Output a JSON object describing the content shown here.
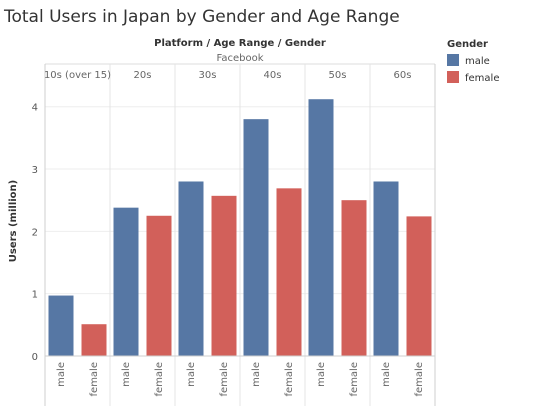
{
  "chart_data": {
    "type": "bar",
    "title": "Total Users in Japan by Gender and Age Range",
    "column_header": "Platform  /  Age Range  /  Gender",
    "platform": "Facebook",
    "ylabel": "Users (million)",
    "ylim": [
      0,
      4.3
    ],
    "yticks": [
      "0",
      "1",
      "2",
      "3",
      "4"
    ],
    "grid": true,
    "legend_position": "right",
    "legend": {
      "title": "Gender",
      "items": [
        {
          "label": "male",
          "color": "#5677a4"
        },
        {
          "label": "female",
          "color": "#d2605a"
        }
      ]
    },
    "categories": [
      "10s (over 15)",
      "20s",
      "30s",
      "40s",
      "50s",
      "60s"
    ],
    "bar_labels": [
      "male",
      "female"
    ],
    "series": [
      {
        "name": "male",
        "color": "#5677a4",
        "values": [
          0.97,
          2.38,
          2.8,
          3.8,
          4.12,
          2.8
        ]
      },
      {
        "name": "female",
        "color": "#d2605a",
        "values": [
          0.51,
          2.25,
          2.57,
          2.69,
          2.5,
          2.24
        ]
      }
    ]
  }
}
